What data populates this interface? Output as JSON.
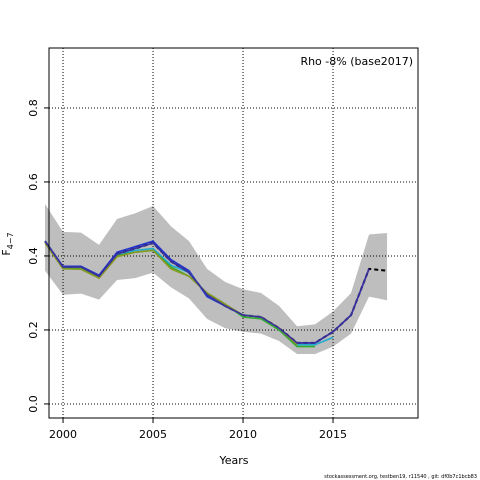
{
  "chart_data": {
    "type": "line",
    "annotation": "Rho -8% (base2017)",
    "x_label": "Years",
    "y_label": {
      "main": "F",
      "sub": "4−7"
    },
    "footer": "stockassessment.org, testben19, r11540 , git: df0b7c1bcb83",
    "x": [
      1999,
      2000,
      2001,
      2002,
      2003,
      2004,
      2005,
      2006,
      2007,
      2008,
      2009,
      2010,
      2011,
      2012,
      2013,
      2014,
      2015,
      2016,
      2017,
      2018
    ],
    "band": {
      "color": "#bebebe",
      "upper": [
        0.54,
        0.465,
        0.463,
        0.43,
        0.5,
        0.515,
        0.535,
        0.48,
        0.44,
        0.365,
        0.33,
        0.31,
        0.3,
        0.265,
        0.21,
        0.215,
        0.25,
        0.3,
        0.458,
        0.462
      ],
      "lower": [
        0.36,
        0.295,
        0.298,
        0.282,
        0.335,
        0.34,
        0.355,
        0.315,
        0.285,
        0.23,
        0.205,
        0.195,
        0.19,
        0.17,
        0.135,
        0.135,
        0.155,
        0.19,
        0.29,
        0.28
      ]
    },
    "series": [
      {
        "color": "#000000",
        "dashed": true,
        "values": [
          0.44,
          0.37,
          0.37,
          0.345,
          0.405,
          0.42,
          0.435,
          0.385,
          0.355,
          0.295,
          0.265,
          0.24,
          0.235,
          0.205,
          0.165,
          0.165,
          0.195,
          0.24,
          0.365,
          0.36
        ]
      },
      {
        "color": "#2233cc",
        "dashed": false,
        "values": [
          0.44,
          0.372,
          0.372,
          0.348,
          0.41,
          0.425,
          0.44,
          0.39,
          0.36,
          0.29,
          0.265,
          0.24,
          0.235,
          0.2,
          0.165,
          0.165,
          0.195,
          0.24,
          0.365,
          null
        ]
      },
      {
        "color": "#22aacc",
        "dashed": false,
        "values": [
          0.44,
          0.37,
          0.368,
          0.345,
          0.4,
          0.415,
          0.42,
          0.375,
          0.355,
          0.295,
          0.265,
          0.24,
          0.235,
          0.2,
          0.16,
          0.16,
          0.18,
          null,
          null,
          null
        ]
      },
      {
        "color": "#33aa33",
        "dashed": false,
        "values": [
          0.44,
          0.368,
          0.366,
          0.342,
          0.4,
          0.41,
          0.415,
          0.37,
          0.345,
          0.3,
          0.27,
          0.235,
          0.23,
          0.2,
          0.155,
          0.155,
          null,
          null,
          null,
          null
        ]
      },
      {
        "color": "#889922",
        "dashed": false,
        "values": [
          0.435,
          0.365,
          0.364,
          0.34,
          0.398,
          0.41,
          0.415,
          0.365,
          0.345,
          0.3,
          0.27,
          0.24,
          0.235,
          0.205,
          0.16,
          null,
          null,
          null,
          null,
          null
        ]
      },
      {
        "color": "#3a2f9e",
        "dashed": false,
        "values": [
          0.44,
          0.37,
          0.37,
          0.345,
          0.405,
          0.42,
          0.435,
          0.385,
          0.355,
          0.295,
          0.265,
          0.24,
          0.235,
          0.205,
          0.165,
          0.165,
          0.195,
          0.24,
          0.365,
          null
        ]
      }
    ],
    "xlim": [
      1999.22,
      2019.72
    ],
    "ylim": [
      -0.038,
      0.962
    ],
    "xticks": [
      2000,
      2005,
      2010,
      2015
    ],
    "yticks": [
      {
        "value": 0,
        "label": "0.0"
      },
      {
        "value": 0.2,
        "label": "0.2"
      },
      {
        "value": 0.4,
        "label": "0.4"
      },
      {
        "value": 0.6,
        "label": "0.6"
      },
      {
        "value": 0.8,
        "label": "0.8"
      }
    ],
    "grid": true
  }
}
